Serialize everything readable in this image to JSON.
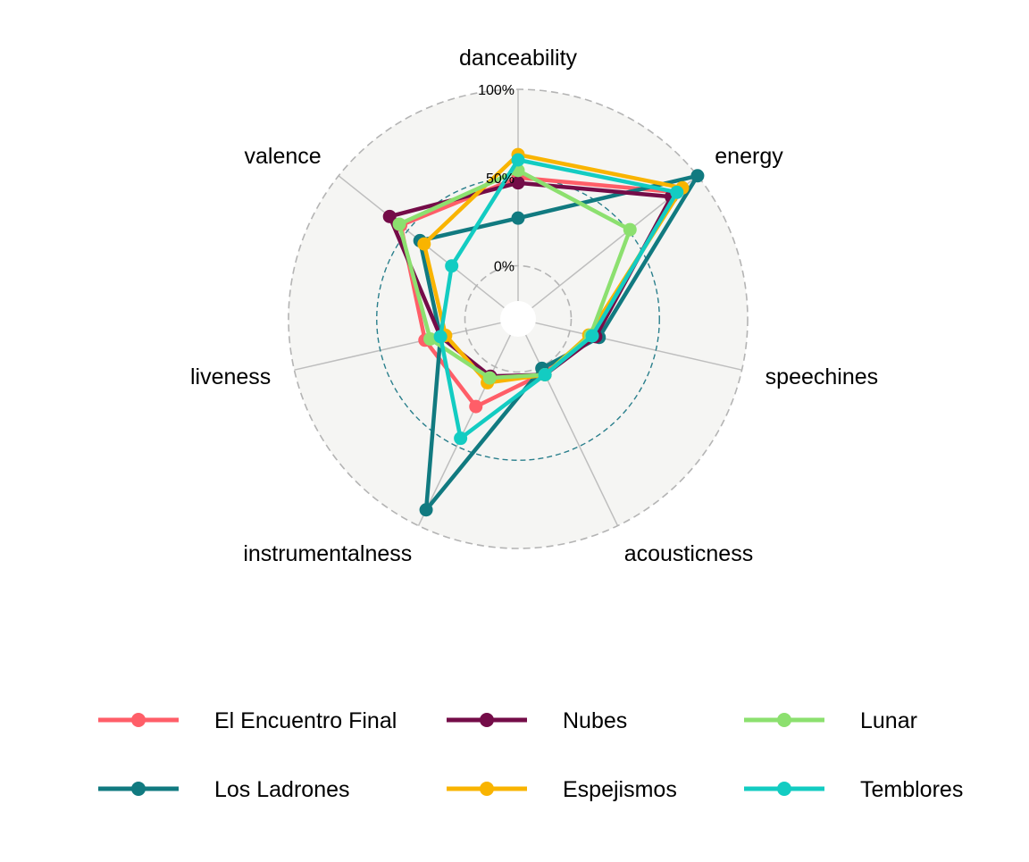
{
  "chart_data": {
    "type": "radar",
    "title": "",
    "axes": [
      "danceability",
      "energy",
      "speechines",
      "acousticness",
      "instrumentalness",
      "liveness",
      "valence"
    ],
    "range": [
      -0.2,
      1.0
    ],
    "rings": [
      {
        "value": 0.0,
        "label": "0%",
        "style": "dashed-grey"
      },
      {
        "value": 0.5,
        "label": "50%",
        "style": "dashed-teal"
      },
      {
        "value": 1.0,
        "label": "100%",
        "style": "dashed-grey"
      }
    ],
    "legend_position": "bottom",
    "series": [
      {
        "name": "El Encuentro Final",
        "color": "#FF5E68",
        "values": [
          0.5,
          0.85,
          0.13,
          0.04,
          0.25,
          0.24,
          0.55
        ]
      },
      {
        "name": "Los Ladrones",
        "color": "#117A80",
        "values": [
          0.27,
          1.0,
          0.17,
          0.01,
          0.9,
          0.15,
          0.41
        ]
      },
      {
        "name": "Nubes",
        "color": "#740C48",
        "values": [
          0.47,
          0.81,
          0.15,
          0.05,
          0.06,
          0.15,
          0.63
        ]
      },
      {
        "name": "Espejismos",
        "color": "#F9B400",
        "values": [
          0.63,
          0.89,
          0.11,
          0.05,
          0.1,
          0.12,
          0.38
        ]
      },
      {
        "name": "Lunar",
        "color": "#8CE06F",
        "values": [
          0.54,
          0.51,
          0.12,
          0.05,
          0.07,
          0.21,
          0.56
        ]
      },
      {
        "name": "Temblores",
        "color": "#13CCC2",
        "values": [
          0.6,
          0.85,
          0.13,
          0.05,
          0.45,
          0.15,
          0.18
        ]
      }
    ]
  }
}
